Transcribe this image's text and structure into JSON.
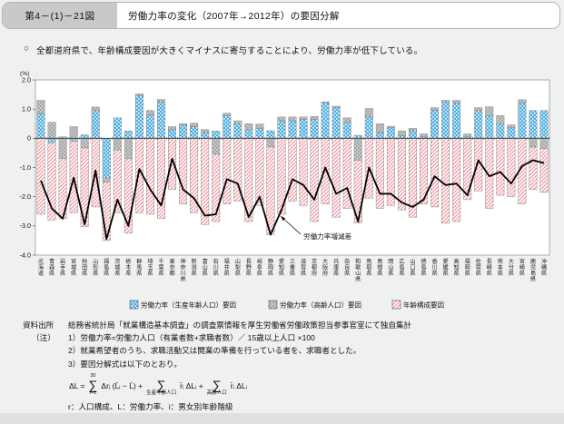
{
  "header": {
    "figure_label": "第4－(1)－21図",
    "title": "労働力率の変化（2007年→2012年）の要因分解"
  },
  "summary": {
    "marker": "○",
    "text": "全都道府県で、年齢構成要因が大きくマイナスに寄与することにより、労働力率が低下している。"
  },
  "chart_data": {
    "type": "bar",
    "subtype": "stacked-bar-with-line",
    "unit_label": "(%)",
    "ylim": [
      -4.0,
      2.0
    ],
    "yticks": [
      {
        "label": "2.0",
        "v": 2
      },
      {
        "label": "1.0",
        "v": 1
      },
      {
        "label": "0",
        "v": 0
      },
      {
        "label": "-1.0",
        "v": -1
      },
      {
        "label": "-2.0",
        "v": -2
      },
      {
        "label": "-3.0",
        "v": -3
      },
      {
        "label": "-4.0",
        "v": -4
      }
    ],
    "categories": [
      "北海道",
      "青森県",
      "岩手県",
      "宮城県",
      "秋田県",
      "山形県",
      "福島県",
      "茨城県",
      "栃木県",
      "群馬県",
      "埼玉県",
      "千葉県",
      "東京都",
      "神奈川県",
      "新潟県",
      "富山県",
      "石川県",
      "福井県",
      "山梨県",
      "長野県",
      "岐阜県",
      "静岡県",
      "愛知県",
      "三重県",
      "滋賀県",
      "京都府",
      "大阪府",
      "兵庫県",
      "奈良県",
      "和歌山県",
      "鳥取県",
      "島根県",
      "岡山県",
      "広島県",
      "山口県",
      "徳島県",
      "香川県",
      "愛媛県",
      "高知県",
      "福岡県",
      "佐賀県",
      "長崎県",
      "熊本県",
      "大分県",
      "宮崎県",
      "鹿児島県",
      "沖縄県"
    ],
    "series": [
      {
        "name": "労働力率（生産年齢人口）要因",
        "style": "blue-check",
        "values": [
          0.85,
          -0.15,
          0.05,
          -0.1,
          0.12,
          0.95,
          -1.35,
          0.7,
          0.25,
          1.45,
          0.8,
          1.25,
          0.3,
          0.45,
          0.4,
          0.2,
          0.25,
          0.78,
          0.5,
          0.3,
          0.35,
          0.26,
          0.6,
          0.6,
          0.65,
          0.65,
          1.2,
          1.05,
          0.55,
          0.1,
          0.75,
          0.2,
          0.36,
          0.1,
          0.26,
          0.05,
          0.97,
          1.25,
          1.2,
          0.05,
          0.95,
          0.78,
          0.5,
          0.36,
          1.22,
          0.95,
          0.95
        ]
      },
      {
        "name": "労働力率（高齢人口）要因",
        "style": "gray-check",
        "values": [
          0.45,
          0.55,
          -0.7,
          0.4,
          -0.33,
          0.12,
          -0.15,
          -0.4,
          -0.7,
          0.07,
          0.15,
          0.08,
          0.1,
          0.05,
          0.12,
          0.1,
          -0.55,
          0.08,
          0.1,
          0.2,
          0.14,
          -0.3,
          0.13,
          0.13,
          0.08,
          0.1,
          0.05,
          0.05,
          0.15,
          -0.75,
          0.27,
          0.3,
          0.05,
          0.15,
          0.08,
          0.1,
          0.08,
          0.05,
          0.1,
          0.1,
          0.1,
          0.3,
          0.28,
          0.1,
          0.1,
          -0.3,
          -0.35
        ]
      },
      {
        "name": "年齢構成要因",
        "style": "pink-hatch",
        "values": [
          -2.6,
          -2.65,
          -2.05,
          -2.45,
          -2.7,
          -2.35,
          -2.0,
          -2.15,
          -2.55,
          -2.55,
          -2.6,
          -2.75,
          -1.75,
          -2.25,
          -2.55,
          -2.95,
          -2.3,
          -2.25,
          -2.15,
          -2.85,
          -2.3,
          -3.0,
          -2.6,
          -2.15,
          -2.3,
          -2.85,
          -2.25,
          -2.7,
          -2.4,
          -2.15,
          -2.05,
          -2.4,
          -2.3,
          -2.45,
          -2.7,
          -2.25,
          -2.35,
          -2.9,
          -2.85,
          -2.1,
          -1.8,
          -2.4,
          -1.95,
          -2.0,
          -2.25,
          -1.45,
          -1.5
        ]
      }
    ],
    "line_series": {
      "name": "労働力率増減差",
      "values": [
        -1.45,
        -2.4,
        -2.75,
        -1.35,
        -2.95,
        -1.1,
        -3.45,
        -2.1,
        -3.0,
        -1.05,
        -1.75,
        -2.3,
        -0.7,
        -1.75,
        -2.05,
        -2.65,
        -2.6,
        -1.4,
        -1.55,
        -2.7,
        -2.0,
        -3.3,
        -2.45,
        -1.4,
        -1.6,
        -2.1,
        -1.0,
        -1.9,
        -1.7,
        -2.85,
        -1.0,
        -1.9,
        -1.9,
        -2.2,
        -2.35,
        -2.1,
        -1.3,
        -1.6,
        -1.55,
        -1.95,
        -0.75,
        -1.3,
        -1.15,
        -1.55,
        -0.95,
        -0.75,
        -0.85
      ]
    },
    "annotation": {
      "text": "労働力率増減差"
    },
    "legend_position": "bottom",
    "grid": false,
    "colors": {
      "blue": "#49ACE0",
      "gray": "#ABABAB",
      "pink_hatch": "#F0959E",
      "line": "#000000",
      "plot_border": "#999999",
      "zero_line": "#444444"
    }
  },
  "footer": {
    "source_label": "資料出所",
    "source_text": "総務省統計局「就業構造基本調査」の調査票情報を厚生労働省労働政策担当参事官室にて独自集計",
    "note_label": "（注）",
    "notes": [
      "1）労働力率=労働力人口（有業者数+求職者数）／ 15歳以上人口 ×100",
      "2）就業希望者のうち、求職活動又は開業の準備を行っている者を、求職者とした。",
      "3）要因分解式は以下のとおり。"
    ],
    "formula": {
      "lhs": "ΔL =",
      "sum1_top": "30",
      "sum1_bot": "i=1",
      "term1": "Δrᵢ (L̄ᵢ − L̄) +",
      "sum2_bot": "生産年齢人口",
      "term2": "r̄ᵢ ΔLᵢ +",
      "sum3_bot": "高齢人口",
      "term3": "r̄ᵢ ΔLᵢ",
      "vars_note": "r：人口構成、L：労働力率、i：男女別年齢階級"
    }
  }
}
